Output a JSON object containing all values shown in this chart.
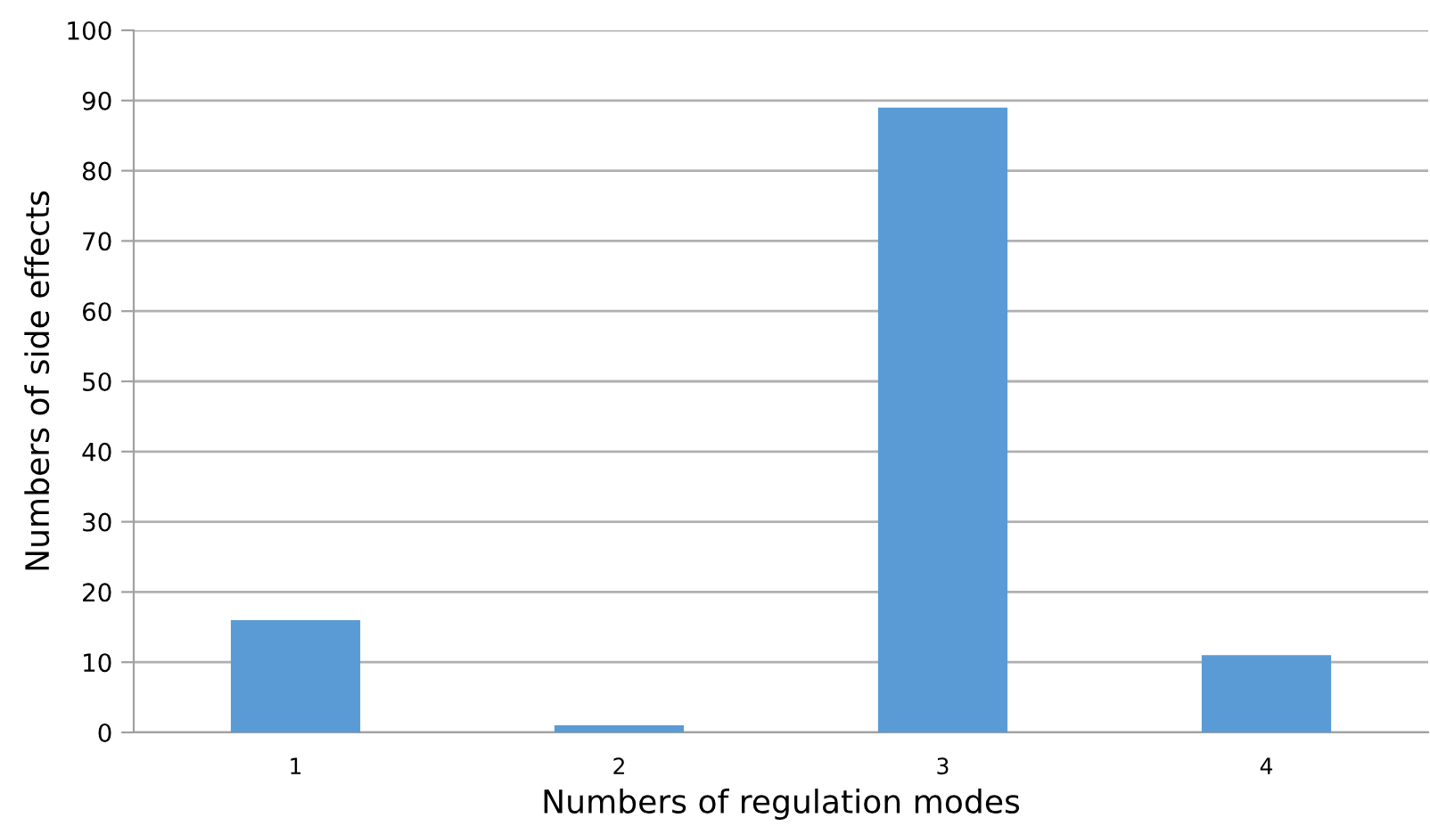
{
  "chart_data": {
    "type": "bar",
    "xlabel": "Numbers of regulation modes",
    "ylabel": "Numbers of side effects",
    "categories": [
      "1",
      "2",
      "3",
      "4"
    ],
    "values": [
      16,
      1,
      89,
      11
    ],
    "color": "#5b9bd5",
    "ylim": [
      0,
      100
    ],
    "yticks": [
      0,
      10,
      20,
      30,
      40,
      50,
      60,
      70,
      80,
      90,
      100
    ],
    "grid": "y"
  }
}
